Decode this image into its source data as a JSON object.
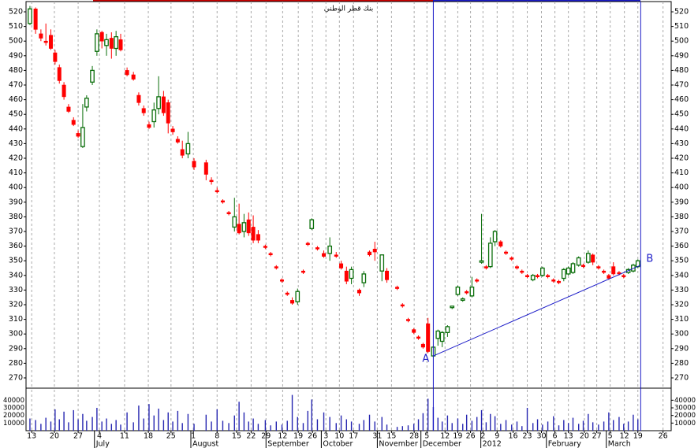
{
  "chart_data": {
    "type": "candlestick",
    "title": "بنك قطر الوطني",
    "xlim": [
      0,
      182
    ],
    "ylim": [
      263,
      527
    ],
    "volume_ylim": [
      0,
      53800
    ],
    "yticks": [
      270,
      280,
      290,
      300,
      310,
      320,
      330,
      340,
      350,
      360,
      370,
      380,
      390,
      400,
      410,
      420,
      430,
      440,
      450,
      460,
      470,
      480,
      490,
      500,
      510,
      520
    ],
    "volume_yticks": [
      10000,
      20000,
      30000,
      40000
    ],
    "xticks": [
      {
        "value": 1.6,
        "label": "13"
      },
      {
        "value": 8,
        "label": "20"
      },
      {
        "value": 14.7,
        "label": "27"
      },
      {
        "value": 20.7,
        "label": "4"
      },
      {
        "value": 27.8,
        "label": "11"
      },
      {
        "value": 34.5,
        "label": "18"
      },
      {
        "value": 40.9,
        "label": "25"
      },
      {
        "value": 47.2,
        "label": "1"
      },
      {
        "value": 53.9,
        "label": "8"
      },
      {
        "value": 59.4,
        "label": "15"
      },
      {
        "value": 63.5,
        "label": "22"
      },
      {
        "value": 67.7,
        "label": "29"
      },
      {
        "value": 72.4,
        "label": "12"
      },
      {
        "value": 76.8,
        "label": "19"
      },
      {
        "value": 80.8,
        "label": "26"
      },
      {
        "value": 84.6,
        "label": "3"
      },
      {
        "value": 88.4,
        "label": "10"
      },
      {
        "value": 92.4,
        "label": "17"
      },
      {
        "value": 99.1,
        "label": "31"
      },
      {
        "value": 103.1,
        "label": "15"
      },
      {
        "value": 109.5,
        "label": "28"
      },
      {
        "value": 113.1,
        "label": "5"
      },
      {
        "value": 118.2,
        "label": "12"
      },
      {
        "value": 121.8,
        "label": "19"
      },
      {
        "value": 125.4,
        "label": "26"
      },
      {
        "value": 128.9,
        "label": "2"
      },
      {
        "value": 132.9,
        "label": "9"
      },
      {
        "value": 137.4,
        "label": "16"
      },
      {
        "value": 141.4,
        "label": "23"
      },
      {
        "value": 145.4,
        "label": "30"
      },
      {
        "value": 149.2,
        "label": "6"
      },
      {
        "value": 153,
        "label": "13"
      },
      {
        "value": 157.5,
        "label": "20"
      },
      {
        "value": 161,
        "label": "27"
      },
      {
        "value": 164.8,
        "label": "5"
      },
      {
        "value": 168.8,
        "label": "12"
      },
      {
        "value": 172.6,
        "label": "19"
      },
      {
        "value": 179.7,
        "label": "26"
      }
    ],
    "month_labels": [
      {
        "value": 19.3,
        "label": "July"
      },
      {
        "value": 46.5,
        "label": "August"
      },
      {
        "value": 67.7,
        "label": "September"
      },
      {
        "value": 83.3,
        "label": "October"
      },
      {
        "value": 99.1,
        "label": "November"
      },
      {
        "value": 111.4,
        "label": "December"
      },
      {
        "value": 128.3,
        "label": "2012"
      },
      {
        "value": 146.8,
        "label": "February"
      },
      {
        "value": 163.7,
        "label": "March"
      }
    ],
    "up_color": "#0a6e0a",
    "down_color": "#ff0000",
    "volume_color": "#2626b0",
    "grid": true,
    "trendline": {
      "labels": [
        "A",
        "B"
      ],
      "x": [
        114.9,
        173.4
      ],
      "y": [
        285,
        347
      ],
      "color": "#1c1cc8"
    },
    "candles": [
      {
        "x": 1.1,
        "o": 512,
        "h": 524,
        "l": 511,
        "c": 522,
        "v": 16000
      },
      {
        "x": 2.7,
        "o": 522,
        "h": 523,
        "l": 505,
        "c": 508,
        "v": 14000
      },
      {
        "x": 4.2,
        "o": 505,
        "h": 508,
        "l": 500,
        "c": 502,
        "v": 9000
      },
      {
        "x": 5.6,
        "o": 500,
        "h": 512,
        "l": 497,
        "c": 499,
        "v": 17000
      },
      {
        "x": 7.0,
        "o": 504,
        "h": 508,
        "l": 494,
        "c": 495,
        "v": 12000
      },
      {
        "x": 8.2,
        "o": 492,
        "h": 494,
        "l": 484,
        "c": 486,
        "v": 28000
      },
      {
        "x": 9.4,
        "o": 482,
        "h": 484,
        "l": 471,
        "c": 473,
        "v": 15000
      },
      {
        "x": 10.7,
        "o": 470,
        "h": 472,
        "l": 460,
        "c": 462,
        "v": 25000
      },
      {
        "x": 12.0,
        "o": 455,
        "h": 457,
        "l": 451,
        "c": 452,
        "v": 11000
      },
      {
        "x": 13.4,
        "o": 446,
        "h": 448,
        "l": 442,
        "c": 443,
        "v": 27000
      },
      {
        "x": 14.7,
        "o": 437,
        "h": 439,
        "l": 434,
        "c": 435,
        "v": 15000
      },
      {
        "x": 16.0,
        "o": 428,
        "h": 457,
        "l": 427,
        "c": 441,
        "v": 22000
      },
      {
        "x": 17.1,
        "o": 455,
        "h": 463,
        "l": 452,
        "c": 461,
        "v": 13000
      },
      {
        "x": 18.7,
        "o": 472,
        "h": 483,
        "l": 470,
        "c": 480,
        "v": 18000
      },
      {
        "x": 20.0,
        "o": 493,
        "h": 508,
        "l": 490,
        "c": 505,
        "v": 30000
      },
      {
        "x": 21.4,
        "o": 506,
        "h": 507,
        "l": 495,
        "c": 500,
        "v": 12000
      },
      {
        "x": 22.7,
        "o": 497,
        "h": 505,
        "l": 490,
        "c": 501,
        "v": 16000
      },
      {
        "x": 24.1,
        "o": 502,
        "h": 506,
        "l": 488,
        "c": 495,
        "v": 9000
      },
      {
        "x": 25.4,
        "o": 495,
        "h": 507,
        "l": 490,
        "c": 503,
        "v": 14000
      },
      {
        "x": 26.7,
        "o": 501,
        "h": 505,
        "l": 493,
        "c": 494,
        "v": 8000
      },
      {
        "x": 28.5,
        "o": 480,
        "h": 482,
        "l": 476,
        "c": 477,
        "v": 24000
      },
      {
        "x": 30.3,
        "o": 477,
        "h": 479,
        "l": 473,
        "c": 474,
        "v": 11000
      },
      {
        "x": 31.8,
        "o": 463,
        "h": 465,
        "l": 456,
        "c": 458,
        "v": 33000
      },
      {
        "x": 33.2,
        "o": 454,
        "h": 456,
        "l": 449,
        "c": 451,
        "v": 16000
      },
      {
        "x": 34.7,
        "o": 443,
        "h": 445,
        "l": 440,
        "c": 441,
        "v": 35000
      },
      {
        "x": 36.1,
        "o": 445,
        "h": 458,
        "l": 441,
        "c": 453,
        "v": 20000
      },
      {
        "x": 37.4,
        "o": 454,
        "h": 476,
        "l": 450,
        "c": 462,
        "v": 29000
      },
      {
        "x": 38.8,
        "o": 462,
        "h": 466,
        "l": 449,
        "c": 451,
        "v": 14000
      },
      {
        "x": 40.1,
        "o": 458,
        "h": 460,
        "l": 437,
        "c": 444,
        "v": 24000
      },
      {
        "x": 41.4,
        "o": 440,
        "h": 442,
        "l": 436,
        "c": 438,
        "v": 12000
      },
      {
        "x": 42.8,
        "o": 433,
        "h": 435,
        "l": 430,
        "c": 431,
        "v": 26000
      },
      {
        "x": 44.1,
        "o": 426,
        "h": 432,
        "l": 420,
        "c": 422,
        "v": 10000
      },
      {
        "x": 45.7,
        "o": 423,
        "h": 438,
        "l": 420,
        "c": 430,
        "v": 22000
      },
      {
        "x": 47.4,
        "o": 418,
        "h": 420,
        "l": 412,
        "c": 414,
        "v": 9000
      },
      {
        "x": 50.8,
        "o": 417,
        "h": 419,
        "l": 405,
        "c": 409,
        "v": 21000
      },
      {
        "x": 52.3,
        "o": 405,
        "h": 407,
        "l": 402,
        "c": 404,
        "v": 12000
      },
      {
        "x": 53.9,
        "o": 398,
        "h": 400,
        "l": 396,
        "c": 397,
        "v": 28000
      },
      {
        "x": 55.5,
        "o": 391,
        "h": 392,
        "l": 389,
        "c": 390,
        "v": 13000
      },
      {
        "x": 57.2,
        "o": 383,
        "h": 384,
        "l": 381,
        "c": 382,
        "v": 10000
      },
      {
        "x": 58.8,
        "o": 373,
        "h": 393,
        "l": 370,
        "c": 380,
        "v": 20000
      },
      {
        "x": 60.1,
        "o": 375,
        "h": 389,
        "l": 368,
        "c": 369,
        "v": 38000
      },
      {
        "x": 61.5,
        "o": 370,
        "h": 382,
        "l": 366,
        "c": 376,
        "v": 24000
      },
      {
        "x": 62.8,
        "o": 378,
        "h": 383,
        "l": 367,
        "c": 369,
        "v": 12000
      },
      {
        "x": 64.1,
        "o": 373,
        "h": 381,
        "l": 362,
        "c": 364,
        "v": 16000
      },
      {
        "x": 65.5,
        "o": 368,
        "h": 371,
        "l": 362,
        "c": 364,
        "v": 9000
      },
      {
        "x": 67.5,
        "o": 360,
        "h": 361,
        "l": 358,
        "c": 359,
        "v": 14000
      },
      {
        "x": 69.0,
        "o": 355,
        "h": 356,
        "l": 353,
        "c": 354,
        "v": 7000
      },
      {
        "x": 70.6,
        "o": 346,
        "h": 347,
        "l": 344,
        "c": 345,
        "v": 12000
      },
      {
        "x": 72.2,
        "o": 337,
        "h": 338,
        "l": 335,
        "c": 336,
        "v": 8000
      },
      {
        "x": 73.7,
        "o": 328,
        "h": 329,
        "l": 326,
        "c": 327,
        "v": 13000
      },
      {
        "x": 75.1,
        "o": 323,
        "h": 325,
        "l": 320,
        "c": 321,
        "v": 47000
      },
      {
        "x": 76.6,
        "o": 322,
        "h": 331,
        "l": 320,
        "c": 329,
        "v": 18000
      },
      {
        "x": 78.2,
        "o": 343,
        "h": 344,
        "l": 341,
        "c": 342,
        "v": 10000
      },
      {
        "x": 79.5,
        "o": 362,
        "h": 363,
        "l": 360,
        "c": 361,
        "v": 26000
      },
      {
        "x": 80.6,
        "o": 372,
        "h": 379,
        "l": 371,
        "c": 378,
        "v": 41000
      },
      {
        "x": 82.2,
        "o": 359,
        "h": 360,
        "l": 357,
        "c": 358,
        "v": 15000
      },
      {
        "x": 84.0,
        "o": 355,
        "h": 357,
        "l": 352,
        "c": 353,
        "v": 24000
      },
      {
        "x": 85.7,
        "o": 355,
        "h": 366,
        "l": 350,
        "c": 360,
        "v": 18000
      },
      {
        "x": 87.5,
        "o": 354,
        "h": 356,
        "l": 352,
        "c": 353,
        "v": 10000
      },
      {
        "x": 88.9,
        "o": 348,
        "h": 350,
        "l": 344,
        "c": 345,
        "v": 20000
      },
      {
        "x": 90.4,
        "o": 343,
        "h": 346,
        "l": 334,
        "c": 336,
        "v": 15000
      },
      {
        "x": 91.8,
        "o": 338,
        "h": 346,
        "l": 334,
        "c": 344,
        "v": 12000
      },
      {
        "x": 94.0,
        "o": 330,
        "h": 331,
        "l": 326,
        "c": 328,
        "v": 9000
      },
      {
        "x": 95.3,
        "o": 335,
        "h": 343,
        "l": 332,
        "c": 341,
        "v": 14000
      },
      {
        "x": 96.9,
        "o": 356,
        "h": 357,
        "l": 353,
        "c": 354,
        "v": 21000
      },
      {
        "x": 98.4,
        "o": 358,
        "h": 363,
        "l": 350,
        "c": 356,
        "v": 12000
      },
      {
        "x": 100.4,
        "o": 343,
        "h": 354,
        "l": 336,
        "c": 354,
        "v": 18000
      },
      {
        "x": 101.8,
        "o": 343,
        "h": 345,
        "l": 335,
        "c": 337,
        "v": 8000
      },
      {
        "x": 104.7,
        "o": 332,
        "h": 333,
        "l": 330,
        "c": 331,
        "v": 5000
      },
      {
        "x": 106.2,
        "o": 320,
        "h": 321,
        "l": 318,
        "c": 319,
        "v": 6000
      },
      {
        "x": 107.8,
        "o": 310,
        "h": 311,
        "l": 308,
        "c": 309,
        "v": 7000
      },
      {
        "x": 109.4,
        "o": 303,
        "h": 304,
        "l": 300,
        "c": 301,
        "v": 9000
      },
      {
        "x": 110.7,
        "o": 298,
        "h": 299,
        "l": 296,
        "c": 297,
        "v": 15000
      },
      {
        "x": 112.0,
        "o": 293,
        "h": 294,
        "l": 290,
        "c": 291,
        "v": 23000
      },
      {
        "x": 113.4,
        "o": 307,
        "h": 311,
        "l": 287,
        "c": 288,
        "v": 42000
      },
      {
        "x": 114.9,
        "o": 285,
        "h": 292,
        "l": 284,
        "c": 291,
        "v": 31000
      },
      {
        "x": 116.2,
        "o": 297,
        "h": 303,
        "l": 292,
        "c": 302,
        "v": 17000
      },
      {
        "x": 117.4,
        "o": 295,
        "h": 302,
        "l": 291,
        "c": 301,
        "v": 12000
      },
      {
        "x": 118.9,
        "o": 301,
        "h": 306,
        "l": 298,
        "c": 305,
        "v": 20000
      },
      {
        "x": 120.2,
        "o": 318,
        "h": 319,
        "l": 317,
        "c": 319,
        "v": 10000
      },
      {
        "x": 121.8,
        "o": 327,
        "h": 333,
        "l": 326,
        "c": 332,
        "v": 16000
      },
      {
        "x": 123.2,
        "o": 323,
        "h": 325,
        "l": 322,
        "c": 324,
        "v": 9000
      },
      {
        "x": 124.3,
        "o": 329,
        "h": 330,
        "l": 327,
        "c": 328,
        "v": 21000
      },
      {
        "x": 125.8,
        "o": 326,
        "h": 339,
        "l": 325,
        "c": 332,
        "v": 13000
      },
      {
        "x": 127.2,
        "o": 337,
        "h": 338,
        "l": 335,
        "c": 336,
        "v": 18000
      },
      {
        "x": 128.5,
        "o": 349,
        "h": 382,
        "l": 348,
        "c": 350,
        "v": 27000
      },
      {
        "x": 129.8,
        "o": 346,
        "h": 347,
        "l": 344,
        "c": 345,
        "v": 11000
      },
      {
        "x": 131.0,
        "o": 346,
        "h": 366,
        "l": 345,
        "c": 362,
        "v": 22000
      },
      {
        "x": 132.3,
        "o": 363,
        "h": 371,
        "l": 360,
        "c": 370,
        "v": 19000
      },
      {
        "x": 133.9,
        "o": 363,
        "h": 364,
        "l": 359,
        "c": 360,
        "v": 9000
      },
      {
        "x": 135.4,
        "o": 356,
        "h": 357,
        "l": 354,
        "c": 355,
        "v": 14000
      },
      {
        "x": 137.0,
        "o": 352,
        "h": 353,
        "l": 350,
        "c": 351,
        "v": 8000
      },
      {
        "x": 138.5,
        "o": 346,
        "h": 347,
        "l": 344,
        "c": 345,
        "v": 12000
      },
      {
        "x": 139.9,
        "o": 343,
        "h": 344,
        "l": 341,
        "c": 342,
        "v": 6000
      },
      {
        "x": 141.4,
        "o": 340,
        "h": 341,
        "l": 338,
        "c": 339,
        "v": 30000
      },
      {
        "x": 143.0,
        "o": 337,
        "h": 341,
        "l": 336,
        "c": 340,
        "v": 10000
      },
      {
        "x": 144.3,
        "o": 340,
        "h": 341,
        "l": 338,
        "c": 339,
        "v": 15000
      },
      {
        "x": 145.7,
        "o": 340,
        "h": 346,
        "l": 339,
        "c": 345,
        "v": 8000
      },
      {
        "x": 147.2,
        "o": 340,
        "h": 341,
        "l": 338,
        "c": 339,
        "v": 12000
      },
      {
        "x": 148.8,
        "o": 337,
        "h": 338,
        "l": 335,
        "c": 336,
        "v": 19000
      },
      {
        "x": 150.3,
        "o": 336,
        "h": 337,
        "l": 334,
        "c": 335,
        "v": 7000
      },
      {
        "x": 151.7,
        "o": 338,
        "h": 345,
        "l": 336,
        "c": 344,
        "v": 14000
      },
      {
        "x": 153.0,
        "o": 341,
        "h": 346,
        "l": 340,
        "c": 345,
        "v": 10000
      },
      {
        "x": 154.3,
        "o": 342,
        "h": 349,
        "l": 341,
        "c": 348,
        "v": 17000
      },
      {
        "x": 155.9,
        "o": 347,
        "h": 353,
        "l": 346,
        "c": 352,
        "v": 9000
      },
      {
        "x": 157.2,
        "o": 347,
        "h": 348,
        "l": 345,
        "c": 346,
        "v": 13000
      },
      {
        "x": 158.6,
        "o": 349,
        "h": 357,
        "l": 348,
        "c": 355,
        "v": 22000
      },
      {
        "x": 159.9,
        "o": 354,
        "h": 355,
        "l": 347,
        "c": 349,
        "v": 11000
      },
      {
        "x": 161.5,
        "o": 346,
        "h": 347,
        "l": 344,
        "c": 345,
        "v": 8000
      },
      {
        "x": 163.0,
        "o": 343,
        "h": 344,
        "l": 341,
        "c": 342,
        "v": 12000
      },
      {
        "x": 164.4,
        "o": 340,
        "h": 341,
        "l": 337,
        "c": 338,
        "v": 24000
      },
      {
        "x": 165.7,
        "o": 346,
        "h": 349,
        "l": 340,
        "c": 341,
        "v": 14000
      },
      {
        "x": 167.3,
        "o": 342,
        "h": 343,
        "l": 340,
        "c": 341,
        "v": 18000
      },
      {
        "x": 168.6,
        "o": 340,
        "h": 341,
        "l": 338,
        "c": 339,
        "v": 9000
      },
      {
        "x": 169.9,
        "o": 342,
        "h": 345,
        "l": 341,
        "c": 344,
        "v": 12000
      },
      {
        "x": 171.3,
        "o": 343,
        "h": 348,
        "l": 342,
        "c": 347,
        "v": 21000
      },
      {
        "x": 172.6,
        "o": 346,
        "h": 351,
        "l": 345,
        "c": 350,
        "v": 15000
      }
    ]
  }
}
